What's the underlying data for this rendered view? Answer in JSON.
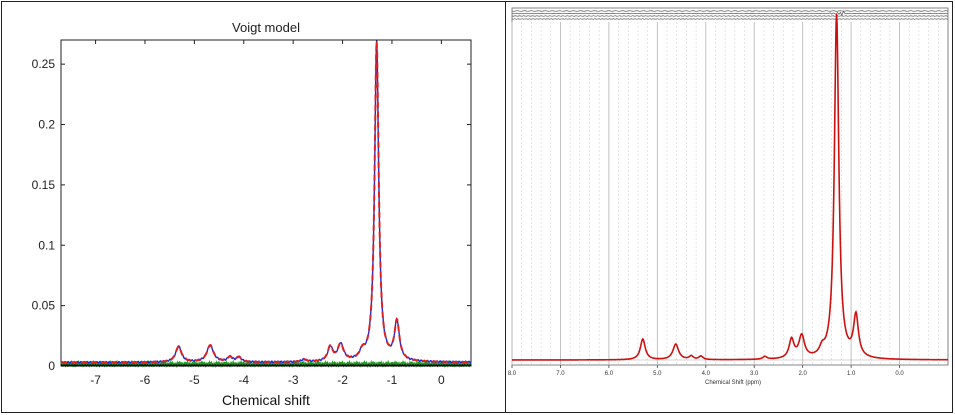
{
  "chart_data": [
    {
      "type": "line",
      "title": "Voigt model",
      "xlabel": "Chemical shift",
      "ylabel": "",
      "xlim": [
        -7.7,
        0.6
      ],
      "ylim": [
        0,
        0.27
      ],
      "xticks": [
        -7,
        -6,
        -5,
        -4,
        -3,
        -2,
        -1,
        0
      ],
      "xtick_labels": [
        "-7",
        "-6",
        "-5",
        "-4",
        "-3",
        "-2",
        "-1",
        "0"
      ],
      "yticks": [
        0,
        0.05,
        0.1,
        0.15,
        0.2,
        0.25
      ],
      "ytick_labels": [
        "0",
        "0.05",
        "0.1",
        "0.15",
        "0.2",
        "0.25"
      ],
      "grid": false,
      "baseline": 0.003,
      "peaks": [
        {
          "x": -5.32,
          "height": 0.013,
          "width": 0.07
        },
        {
          "x": -4.68,
          "height": 0.014,
          "width": 0.08
        },
        {
          "x": -4.28,
          "height": 0.004,
          "width": 0.06
        },
        {
          "x": -4.1,
          "height": 0.004,
          "width": 0.06
        },
        {
          "x": -2.78,
          "height": 0.002,
          "width": 0.06
        },
        {
          "x": -2.25,
          "height": 0.012,
          "width": 0.06
        },
        {
          "x": -2.04,
          "height": 0.014,
          "width": 0.07
        },
        {
          "x": -1.6,
          "height": 0.006,
          "width": 0.06
        },
        {
          "x": -1.31,
          "height": 0.265,
          "width": 0.05
        },
        {
          "x": -0.9,
          "height": 0.032,
          "width": 0.06
        }
      ],
      "series": [
        {
          "color": "#1f2bd6",
          "style": "solid"
        },
        {
          "color": "#e02020",
          "style": "dashed"
        },
        {
          "color": "#1a9a1a",
          "style": "solid"
        },
        {
          "color": "#000000",
          "style": "solid"
        }
      ]
    },
    {
      "type": "line",
      "title": "",
      "xlabel": "Chemical Shift (ppm)",
      "ylabel": "",
      "xlim": [
        8.0,
        -1.0
      ],
      "xticks": [
        8.0,
        7.0,
        6.0,
        5.0,
        4.0,
        3.0,
        2.0,
        1.0,
        0.0
      ],
      "xtick_labels": [
        "8.0",
        "7.0",
        "6.0",
        "5.0",
        "4.0",
        "3.0",
        "2.0",
        "1.0",
        "0.0"
      ],
      "grid": true,
      "peaks": [
        {
          "x": 5.3,
          "height": 0.06,
          "width": 0.06
        },
        {
          "x": 4.62,
          "height": 0.045,
          "width": 0.07
        },
        {
          "x": 4.3,
          "height": 0.01,
          "width": 0.05
        },
        {
          "x": 4.1,
          "height": 0.01,
          "width": 0.05
        },
        {
          "x": 2.78,
          "height": 0.008,
          "width": 0.05
        },
        {
          "x": 2.23,
          "height": 0.055,
          "width": 0.06
        },
        {
          "x": 2.02,
          "height": 0.065,
          "width": 0.07
        },
        {
          "x": 1.6,
          "height": 0.02,
          "width": 0.06
        },
        {
          "x": 1.3,
          "height": 1.0,
          "width": 0.055
        },
        {
          "x": 0.9,
          "height": 0.12,
          "width": 0.06
        }
      ],
      "series": [
        {
          "color": "#cc1111",
          "style": "solid"
        }
      ]
    }
  ],
  "colors": {
    "frame": "#222222",
    "grid_major": "#bbbbbb",
    "grid_minor": "#d4d4d4",
    "residual": "#555555"
  }
}
